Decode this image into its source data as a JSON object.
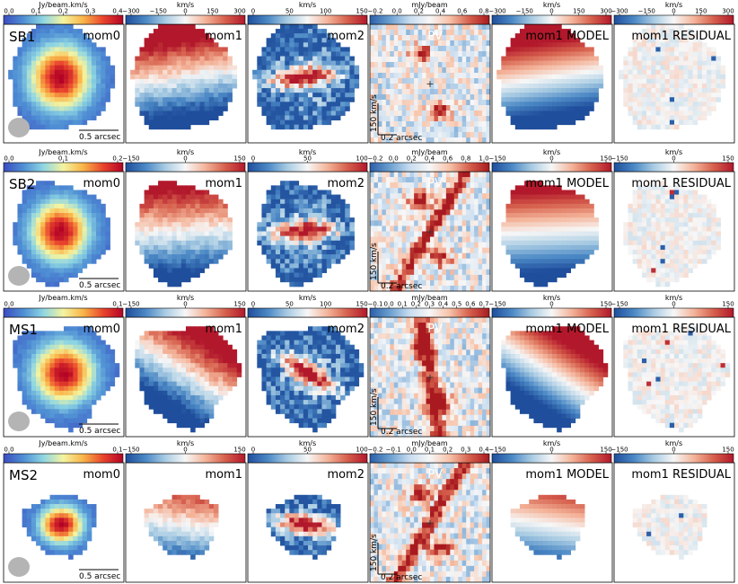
{
  "figure": {
    "panel_titles": [
      "mom0",
      "mom1",
      "mom2",
      "PV",
      "mom1 MODEL",
      "mom1 RESIDUAL"
    ],
    "pv_scalebar_velocity": "150 km/s",
    "pv_scalebar_offset": "0.2 arcsec",
    "map_scalebar": "0.5 arcsec",
    "beam_color": "#b4b4b4",
    "pv_center_marker": "+"
  },
  "colormaps": {
    "mom0": [
      "#3b4cc0",
      "#4f8fd4",
      "#8fd6e3",
      "#f4f4a0",
      "#f9b448",
      "#e9452d",
      "#b40426"
    ],
    "velocity": [
      "#1f4e9c",
      "#4b88c5",
      "#a9cce3",
      "#f7f7f7",
      "#f4b49a",
      "#d6604d",
      "#b2182b"
    ],
    "pv": [
      "#2c5ea8",
      "#6a9fd0",
      "#c7dcef",
      "#f7f7f7",
      "#f7c2a8",
      "#d6604d",
      "#a81a1f"
    ]
  },
  "rows": [
    {
      "id": "SB1",
      "label": "SB1",
      "colorbars": [
        {
          "label": "Jy/beam.km/s",
          "ticks": [
            "0.0",
            "0.1",
            "0.2",
            "0.3",
            "0.4"
          ],
          "cmap": "mom0"
        },
        {
          "label": "km/s",
          "ticks": [
            "−300",
            "−150",
            "0",
            "150",
            "300"
          ],
          "cmap": "velocity"
        },
        {
          "label": "km/s",
          "ticks": [
            "0",
            "50",
            "100",
            "150"
          ],
          "cmap": "velocity"
        },
        {
          "label": "mJy/beam",
          "ticks": [
            "−0.2",
            "0.0",
            "0.2",
            "0.4",
            "0.6",
            "0.8"
          ],
          "cmap": "pv"
        },
        {
          "label": "km/s",
          "ticks": [
            "−300",
            "−150",
            "0",
            "150",
            "300"
          ],
          "cmap": "velocity"
        },
        {
          "label": "km/s",
          "ticks": [
            "−300",
            "−150",
            "0",
            "150",
            "300"
          ],
          "cmap": "velocity"
        }
      ]
    },
    {
      "id": "SB2",
      "label": "SB2",
      "colorbars": [
        {
          "label": "Jy/beam.km/s",
          "ticks": [
            "0.0",
            "0.1",
            "0.2"
          ],
          "cmap": "mom0"
        },
        {
          "label": "km/s",
          "ticks": [
            "−150",
            "0",
            "150"
          ],
          "cmap": "velocity"
        },
        {
          "label": "km/s",
          "ticks": [
            "0",
            "50",
            "100"
          ],
          "cmap": "velocity"
        },
        {
          "label": "mJy/beam",
          "ticks": [
            "−0.2",
            "0.0",
            "0.2",
            "0.4",
            "0.6",
            "0.8",
            "1.0"
          ],
          "cmap": "pv"
        },
        {
          "label": "km/s",
          "ticks": [
            "−150",
            "0",
            "150"
          ],
          "cmap": "velocity"
        },
        {
          "label": "km/s",
          "ticks": [
            "−150",
            "0",
            "150"
          ],
          "cmap": "velocity"
        }
      ]
    },
    {
      "id": "MS1",
      "label": "MS1",
      "colorbars": [
        {
          "label": "Jy/beam.km/s",
          "ticks": [
            "0.0",
            "0.1"
          ],
          "cmap": "mom0"
        },
        {
          "label": "km/s",
          "ticks": [
            "−150",
            "0",
            "150"
          ],
          "cmap": "velocity"
        },
        {
          "label": "km/s",
          "ticks": [
            "0",
            "50",
            "100",
            "150"
          ],
          "cmap": "velocity"
        },
        {
          "label": "mJy/beam",
          "ticks": [
            "−0.1",
            "0.0",
            "0.1",
            "0.2",
            "0.3",
            "0.4",
            "0.5",
            "0.6",
            "0.7"
          ],
          "cmap": "pv"
        },
        {
          "label": "km/s",
          "ticks": [
            "−150",
            "0",
            "150"
          ],
          "cmap": "velocity"
        },
        {
          "label": "km/s",
          "ticks": [
            "−150",
            "0",
            "150"
          ],
          "cmap": "velocity"
        }
      ]
    },
    {
      "id": "MS2",
      "label": "MS2",
      "colorbars": [
        {
          "label": "Jy/beam.km/s",
          "ticks": [
            "0.0",
            "0.1"
          ],
          "cmap": "mom0"
        },
        {
          "label": "km/s",
          "ticks": [
            "−150",
            "0",
            "150"
          ],
          "cmap": "velocity"
        },
        {
          "label": "km/s",
          "ticks": [
            "0",
            "50",
            "100"
          ],
          "cmap": "velocity"
        },
        {
          "label": "mJy/beam",
          "ticks": [
            "−0.2",
            "−0.1",
            "0.0",
            "0.1",
            "0.2",
            "0.3",
            "0.4"
          ],
          "cmap": "pv"
        },
        {
          "label": "km/s",
          "ticks": [
            "−150",
            "0",
            "150"
          ],
          "cmap": "velocity"
        },
        {
          "label": "km/s",
          "ticks": [
            "−150",
            "0",
            "150"
          ],
          "cmap": "velocity"
        }
      ]
    }
  ]
}
